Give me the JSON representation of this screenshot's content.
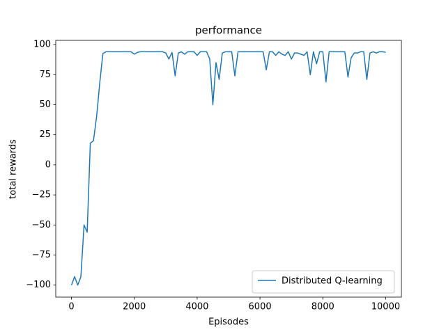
{
  "chart_data": {
    "type": "line",
    "title": "performance",
    "x_label": "Episodes",
    "y_label": "total rewards",
    "x": [
      0,
      100,
      200,
      300,
      400,
      500,
      600,
      700,
      800,
      900,
      1000,
      1100,
      1200,
      1300,
      1400,
      1500,
      1600,
      1700,
      1800,
      1900,
      2000,
      2100,
      2200,
      2300,
      2400,
      2500,
      2600,
      2700,
      2800,
      2900,
      3000,
      3100,
      3200,
      3300,
      3400,
      3500,
      3600,
      3700,
      3800,
      3900,
      4000,
      4100,
      4200,
      4300,
      4400,
      4500,
      4600,
      4700,
      4800,
      4900,
      5000,
      5100,
      5200,
      5300,
      5400,
      5500,
      5600,
      5700,
      5800,
      5900,
      6000,
      6100,
      6200,
      6300,
      6400,
      6500,
      6600,
      6700,
      6800,
      6900,
      7000,
      7100,
      7200,
      7300,
      7400,
      7500,
      7600,
      7700,
      7800,
      7900,
      8000,
      8100,
      8200,
      8300,
      8400,
      8500,
      8600,
      8700,
      8800,
      8900,
      9000,
      9100,
      9200,
      9300,
      9400,
      9500,
      9600,
      9700,
      9800,
      9900,
      10000
    ],
    "series": [
      {
        "name": "Distributed Q-learning",
        "color": "#1f77b4",
        "values": [
          -100,
          -93,
          -100,
          -93,
          -50,
          -56,
          18,
          20,
          40,
          68,
          92.5,
          94,
          94,
          94,
          94,
          94,
          94,
          94,
          94,
          94,
          92,
          93.5,
          94,
          94,
          94,
          94,
          94,
          94,
          94,
          94,
          93,
          88,
          93.5,
          74,
          93,
          94,
          92,
          94,
          94,
          94,
          91,
          94,
          94,
          94,
          88,
          50,
          85,
          71,
          93,
          94,
          94,
          94,
          74,
          94,
          94,
          94,
          94,
          94,
          94,
          94,
          94,
          94,
          79,
          94,
          94,
          91,
          94,
          92,
          91,
          94,
          88,
          93,
          93,
          92,
          91,
          94,
          75,
          94,
          84,
          94,
          94,
          69,
          94,
          94,
          94,
          94,
          94,
          94,
          73,
          89,
          93,
          93,
          94,
          94,
          71,
          93,
          94,
          93,
          94,
          94,
          93.5
        ]
      }
    ],
    "xlim": [
      -500,
      10500
    ],
    "ylim": [
      -110,
      103.5
    ],
    "xticks": [
      0,
      2000,
      4000,
      6000,
      8000,
      10000
    ],
    "yticks": [
      {
        "value": -100,
        "label": "−100"
      },
      {
        "value": -75,
        "label": "−75"
      },
      {
        "value": -50,
        "label": "−50"
      },
      {
        "value": -25,
        "label": "−25"
      },
      0,
      25,
      50,
      75,
      100
    ],
    "legend": "lower right"
  }
}
